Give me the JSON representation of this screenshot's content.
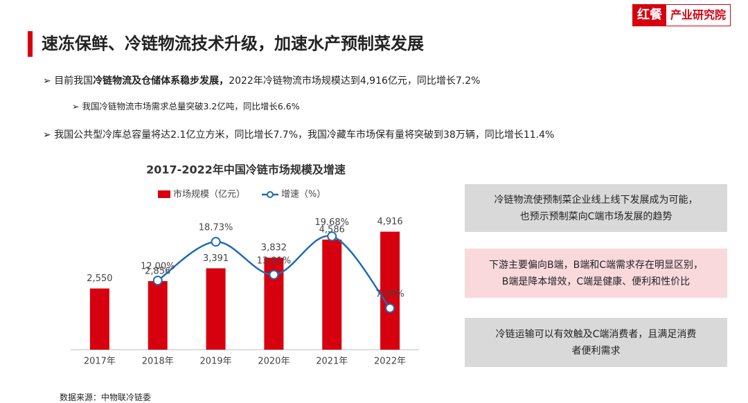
{
  "header": {
    "title": "速冻保鲜、冷链物流技术升级，加速水产预制菜发展",
    "logo_left": "红餐",
    "logo_right": "产业研究院"
  },
  "bullets": [
    {
      "parts": [
        "目前我国",
        "冷链物流及仓储体系稳步发展，",
        "2022年冷链物流市场规模达到4,916亿元，同比增长7.2%"
      ],
      "sub": "我国冷链物流市场需求总量突破3.2亿吨，同比增长6.6%"
    },
    {
      "parts": [
        "我国公共型冷库总容量将达2.1亿立方米，同比增长7.7%，我国冷藏车市场保有量将突破到38万辆，同比增长11.4%"
      ]
    }
  ],
  "boxes": [
    {
      "lines": [
        "冷链物流使预制菜企业线上线下发展成为可能，",
        "也预示预制菜向C端市场发展的趋势"
      ]
    },
    {
      "lines": [
        "下游主要偏向B端，B端和C端需求存在明显区别，",
        "B端是降本增效，C端是健康、便利和性价比"
      ]
    },
    {
      "lines": [
        "冷链运输可以有效触及C端消费者，且满足消费",
        "者便利需求"
      ]
    }
  ],
  "source": "数据来源：中物联冷链委",
  "chart_data": {
    "type": "bar",
    "title": "2017-2022年中国冷链市场规模及增速",
    "categories": [
      "2017年",
      "2018年",
      "2019年",
      "2020年",
      "2021年",
      "2022年"
    ],
    "series": [
      {
        "name": "市场规模（亿元）",
        "type": "bar",
        "color": "#d7000f",
        "values": [
          2550,
          2856,
          3391,
          3832,
          4586,
          4916
        ],
        "value_labels": [
          "2,550",
          "2,856",
          "3,391",
          "3,832",
          "4,586",
          "4,916"
        ]
      },
      {
        "name": "增速（%）",
        "type": "line",
        "color": "#1f6bb5",
        "axis": "y2",
        "values": [
          null,
          12.0,
          18.73,
          13.01,
          19.68,
          7.2
        ],
        "value_labels": [
          null,
          "12.00%",
          "18.73%",
          "13.01%",
          "19.68%",
          "7.20%"
        ]
      }
    ],
    "ylim": [
      0,
      6000
    ],
    "y2lim": [
      0,
      25
    ]
  }
}
